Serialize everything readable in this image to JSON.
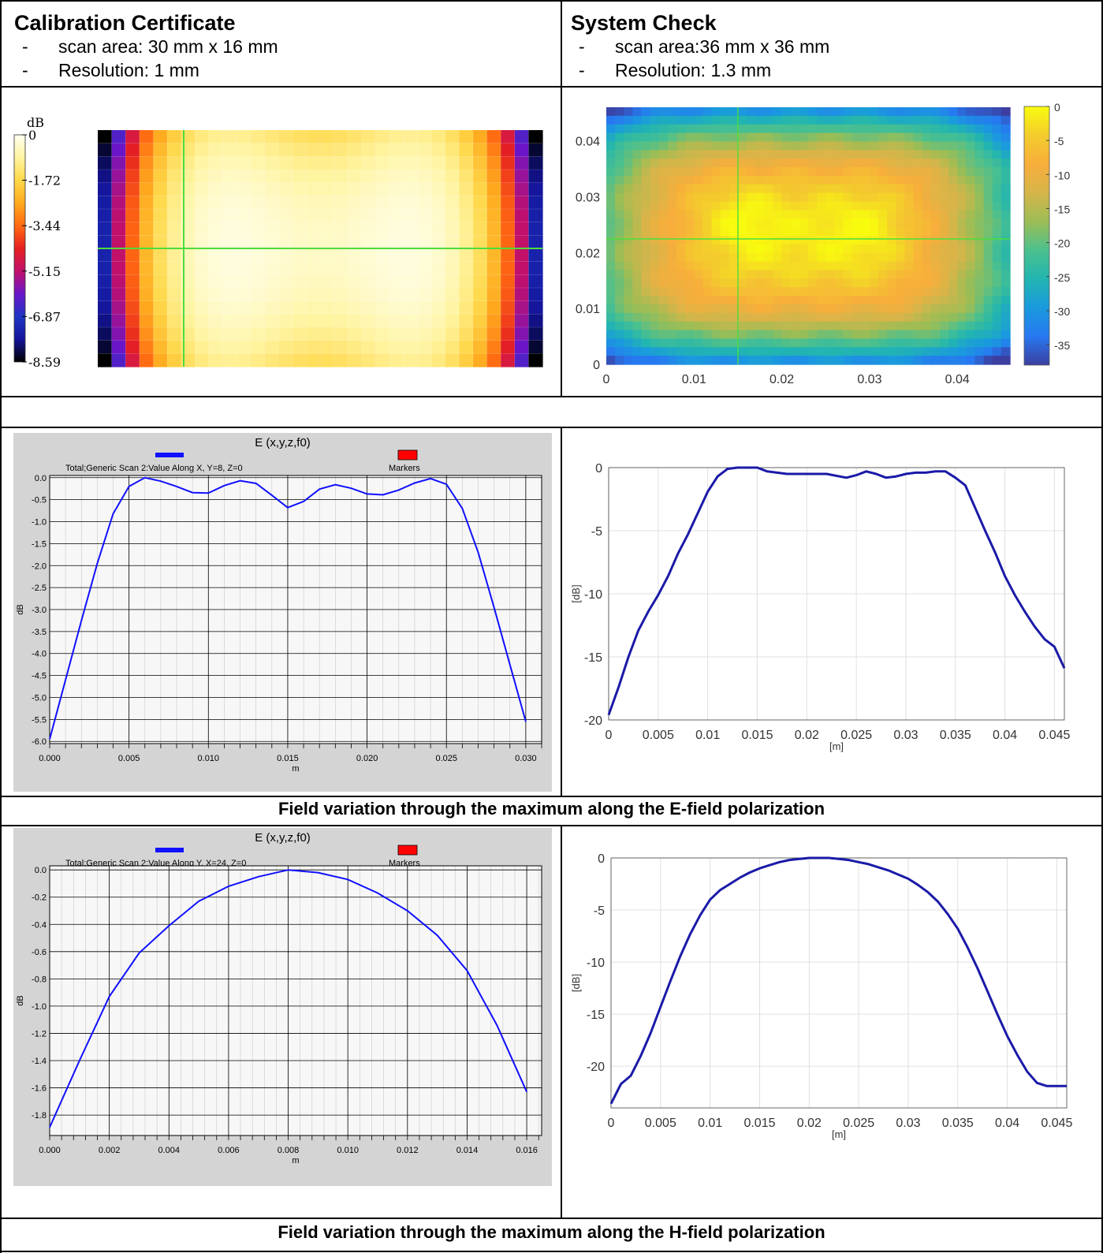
{
  "header": {
    "left": {
      "title": "Calibration Certificate",
      "items": [
        {
          "dash": "-",
          "text": "scan area: 30 mm x 16 mm"
        },
        {
          "dash": "-",
          "text": "Resolution: 1 mm"
        }
      ]
    },
    "right": {
      "title": "System Check",
      "items": [
        {
          "dash": "-",
          "text": "scan area:36 mm x 36 mm"
        },
        {
          "dash": "-",
          "text": "Resolution: 1.3 mm"
        }
      ]
    }
  },
  "captions": {
    "e_field": "Field variation through the maximum along the E-field polarization",
    "h_field": "Field variation through the maximum along the H-field polarization"
  },
  "colors": {
    "dasy_line": "#1010ff",
    "matlab_line": "#1a1aa8",
    "marker": "#ff0000",
    "crosshair": "#4cdd3c"
  },
  "chart_data": [
    {
      "id": "cal_map",
      "type": "heatmap",
      "colorbar_title": "dB",
      "colorbar_ticks": [
        "0",
        "-1.72",
        "-3.44",
        "-5.15",
        "-6.87",
        "-8.59"
      ],
      "colormap": [
        "#fffff0",
        "#fff4a0",
        "#ffd84a",
        "#ffaa1e",
        "#ff6a12",
        "#e62020",
        "#c0106c",
        "#6a16c8",
        "#1f36c4",
        "#14149a",
        "#000000"
      ],
      "zlim": [
        -8.59,
        0
      ]
    },
    {
      "id": "sys_map",
      "type": "heatmap",
      "xlim": [
        0,
        0.046
      ],
      "ylim": [
        0,
        0.046
      ],
      "x_ticks": [
        "0",
        "0.01",
        "0.02",
        "0.03",
        "0.04"
      ],
      "y_ticks": [
        "0",
        "0.01",
        "0.02",
        "0.03",
        "0.04"
      ],
      "colorbar_ticks": [
        "0",
        "-5",
        "-10",
        "-15",
        "-20",
        "-25",
        "-30",
        "-35"
      ],
      "colormap": [
        "#f9fb0e",
        "#f3cc2d",
        "#f8ae3b",
        "#d6b54a",
        "#9cbd55",
        "#4cc08e",
        "#22b5b0",
        "#1a9ade",
        "#2778f0",
        "#3c3fa0"
      ],
      "zlim": [
        -38,
        0
      ]
    },
    {
      "id": "e_dasy",
      "type": "line",
      "title": "E (x,y,z,f0)",
      "legend": [
        "Total;Generic Scan 2:Value Along X, Y=8, Z=0",
        "Markers"
      ],
      "xlabel": "m",
      "ylabel": "dB",
      "xlim": [
        0,
        0.031
      ],
      "ylim": [
        -6.05,
        0.05
      ],
      "x_ticks": [
        0,
        0.005,
        0.01,
        0.015,
        0.02,
        0.025,
        0.03
      ],
      "x_tick_labels": [
        "0.000",
        "0.005",
        "0.010",
        "0.015",
        "0.020",
        "0.025",
        "0.030"
      ],
      "y_ticks": [
        0,
        -0.5,
        -1,
        -1.5,
        -2,
        -2.5,
        -3,
        -3.5,
        -4,
        -4.5,
        -5,
        -5.5,
        -6
      ],
      "y_tick_labels": [
        "0.0",
        "-0.5",
        "-1.0",
        "-1.5",
        "-2.0",
        "-2.5",
        "-3.0",
        "-3.5",
        "-4.0",
        "-4.5",
        "-5.0",
        "-5.5",
        "-6.0"
      ],
      "series": [
        {
          "x": [
            0,
            0.001,
            0.002,
            0.003,
            0.004,
            0.005,
            0.006,
            0.007,
            0.008,
            0.009,
            0.01,
            0.011,
            0.012,
            0.013,
            0.014,
            0.015,
            0.016,
            0.017,
            0.018,
            0.019,
            0.02,
            0.021,
            0.022,
            0.023,
            0.024,
            0.025,
            0.026,
            0.027,
            0.028,
            0.029,
            0.03
          ],
          "y": [
            -5.95,
            -4.6,
            -3.25,
            -1.95,
            -0.82,
            -0.2,
            0,
            -0.08,
            -0.2,
            -0.34,
            -0.35,
            -0.18,
            -0.07,
            -0.13,
            -0.4,
            -0.68,
            -0.54,
            -0.26,
            -0.16,
            -0.24,
            -0.37,
            -0.39,
            -0.28,
            -0.12,
            -0.02,
            -0.15,
            -0.7,
            -1.7,
            -2.95,
            -4.25,
            -5.55
          ]
        }
      ]
    },
    {
      "id": "e_sys",
      "type": "line",
      "xlabel": "[m]",
      "ylabel": "[dB]",
      "xlim": [
        0,
        0.046
      ],
      "ylim": [
        -20,
        0
      ],
      "x_ticks": [
        0,
        0.005,
        0.01,
        0.015,
        0.02,
        0.025,
        0.03,
        0.035,
        0.04,
        0.045
      ],
      "x_tick_labels": [
        "0",
        "0.005",
        "0.01",
        "0.015",
        "0.02",
        "0.025",
        "0.03",
        "0.035",
        "0.04",
        "0.045"
      ],
      "y_ticks": [
        0,
        -5,
        -10,
        -15,
        -20
      ],
      "y_tick_labels": [
        "0",
        "-5",
        "-10",
        "-15",
        "-20"
      ],
      "series": [
        {
          "x": [
            0,
            0.001,
            0.002,
            0.003,
            0.004,
            0.005,
            0.006,
            0.007,
            0.008,
            0.009,
            0.01,
            0.011,
            0.012,
            0.013,
            0.014,
            0.015,
            0.016,
            0.018,
            0.02,
            0.022,
            0.024,
            0.025,
            0.026,
            0.027,
            0.028,
            0.029,
            0.03,
            0.031,
            0.032,
            0.033,
            0.034,
            0.035,
            0.036,
            0.037,
            0.038,
            0.039,
            0.04,
            0.041,
            0.042,
            0.043,
            0.044,
            0.045,
            0.046
          ],
          "y": [
            -19.6,
            -17.4,
            -15.0,
            -12.9,
            -11.4,
            -10.1,
            -8.6,
            -6.8,
            -5.3,
            -3.6,
            -1.9,
            -0.7,
            -0.1,
            0,
            0,
            0,
            -0.3,
            -0.5,
            -0.5,
            -0.5,
            -0.8,
            -0.6,
            -0.3,
            -0.5,
            -0.8,
            -0.7,
            -0.5,
            -0.4,
            -0.4,
            -0.3,
            -0.3,
            -0.8,
            -1.4,
            -3.2,
            -5.0,
            -6.7,
            -8.6,
            -10.1,
            -11.4,
            -12.6,
            -13.6,
            -14.2,
            -15.9
          ]
        }
      ]
    },
    {
      "id": "h_dasy",
      "type": "line",
      "title": "E (x,y,z,f0)",
      "legend": [
        "Total;Generic Scan 2:Value Along Y, X=24, Z=0",
        "Markers"
      ],
      "xlabel": "m",
      "ylabel": "dB",
      "xlim": [
        0,
        0.0165
      ],
      "ylim": [
        -1.95,
        0.03
      ],
      "x_ticks": [
        0,
        0.002,
        0.004,
        0.006,
        0.008,
        0.01,
        0.012,
        0.014,
        0.016
      ],
      "x_tick_labels": [
        "0.000",
        "0.002",
        "0.004",
        "0.006",
        "0.008",
        "0.010",
        "0.012",
        "0.014",
        "0.016"
      ],
      "y_ticks": [
        0,
        -0.2,
        -0.4,
        -0.6,
        -0.8,
        -1.0,
        -1.2,
        -1.4,
        -1.6,
        -1.8
      ],
      "y_tick_labels": [
        "0.0",
        "-0.2",
        "-0.4",
        "-0.6",
        "-0.8",
        "-1.0",
        "-1.2",
        "-1.4",
        "-1.6",
        "-1.8"
      ],
      "series": [
        {
          "x": [
            0,
            0.001,
            0.002,
            0.003,
            0.004,
            0.005,
            0.006,
            0.007,
            0.008,
            0.009,
            0.01,
            0.011,
            0.012,
            0.013,
            0.014,
            0.015,
            0.016
          ],
          "y": [
            -1.89,
            -1.4,
            -0.93,
            -0.61,
            -0.41,
            -0.23,
            -0.12,
            -0.05,
            0,
            -0.02,
            -0.07,
            -0.17,
            -0.3,
            -0.48,
            -0.74,
            -1.14,
            -1.63
          ]
        }
      ]
    },
    {
      "id": "h_sys",
      "type": "line",
      "xlabel": "[m]",
      "ylabel": "[dB]",
      "xlim": [
        0,
        0.046
      ],
      "ylim": [
        -24,
        0
      ],
      "x_ticks": [
        0,
        0.005,
        0.01,
        0.015,
        0.02,
        0.025,
        0.03,
        0.035,
        0.04,
        0.045
      ],
      "x_tick_labels": [
        "0",
        "0.005",
        "0.01",
        "0.015",
        "0.02",
        "0.025",
        "0.03",
        "0.035",
        "0.04",
        "0.045"
      ],
      "y_ticks": [
        0,
        -5,
        -10,
        -15,
        -20
      ],
      "y_tick_labels": [
        "0",
        "-5",
        "-10",
        "-15",
        "-20"
      ],
      "series": [
        {
          "x": [
            0,
            0.001,
            0.002,
            0.003,
            0.004,
            0.005,
            0.006,
            0.007,
            0.008,
            0.009,
            0.01,
            0.011,
            0.012,
            0.013,
            0.014,
            0.015,
            0.016,
            0.017,
            0.018,
            0.019,
            0.02,
            0.021,
            0.022,
            0.023,
            0.024,
            0.025,
            0.026,
            0.027,
            0.028,
            0.029,
            0.03,
            0.031,
            0.032,
            0.033,
            0.034,
            0.035,
            0.036,
            0.037,
            0.038,
            0.039,
            0.04,
            0.041,
            0.042,
            0.043,
            0.044,
            0.045,
            0.046
          ],
          "y": [
            -23.6,
            -21.7,
            -20.9,
            -19.0,
            -16.8,
            -14.3,
            -11.8,
            -9.4,
            -7.3,
            -5.5,
            -4.0,
            -3.1,
            -2.5,
            -1.9,
            -1.4,
            -1.0,
            -0.7,
            -0.4,
            -0.2,
            -0.1,
            0,
            0,
            0,
            -0.1,
            -0.2,
            -0.4,
            -0.6,
            -0.9,
            -1.2,
            -1.6,
            -2.0,
            -2.6,
            -3.3,
            -4.2,
            -5.4,
            -6.8,
            -8.6,
            -10.6,
            -12.8,
            -15.0,
            -17.1,
            -18.9,
            -20.5,
            -21.6,
            -21.9,
            -21.9,
            -21.9
          ]
        }
      ]
    }
  ]
}
